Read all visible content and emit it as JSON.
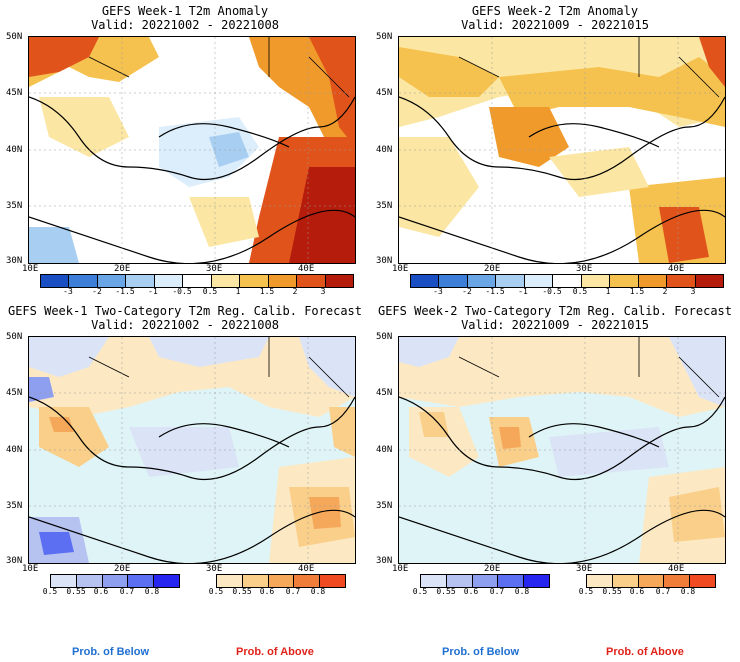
{
  "panels": [
    {
      "title": "GEFS Week-1 T2m Anomaly",
      "valid": "Valid: 20221002 - 20221008"
    },
    {
      "title": "GEFS Week-2 T2m Anomaly",
      "valid": "Valid: 20221009 - 20221015"
    },
    {
      "title": "GEFS Week-1 Two-Category T2m Reg. Calib. Forecast",
      "valid": "Valid: 20221002 - 20221008"
    },
    {
      "title": "GEFS Week-2 Two-Category T2m Reg. Calib. Forecast",
      "valid": "Valid: 20221009 - 20221015"
    }
  ],
  "axes": {
    "lat": [
      "50N",
      "45N",
      "40N",
      "35N",
      "30N"
    ],
    "lon": [
      "10E",
      "20E",
      "30E",
      "40E"
    ]
  },
  "anomaly_scale": {
    "ticks": [
      "-3",
      "-2",
      "-1.5",
      "-1",
      "-0.5",
      "0.5",
      "1",
      "1.5",
      "2",
      "3"
    ],
    "colors": [
      "#1a4fc4",
      "#3d7fd8",
      "#6aa6e6",
      "#a8cff2",
      "#dceefb",
      "#ffffff",
      "#fbe7a3",
      "#f6c24f",
      "#f09a2c",
      "#e0541c",
      "#b51c0c"
    ]
  },
  "prob_scale": {
    "ticks": [
      "0.5",
      "0.55",
      "0.6",
      "0.7",
      "0.8"
    ],
    "below_colors": [
      "#dbe3f7",
      "#b6c3f1",
      "#8f9ff0",
      "#5c6ff2",
      "#2626f0"
    ],
    "above_colors": [
      "#fce9c3",
      "#f9cf8a",
      "#f5a85a",
      "#f07d3a",
      "#ef4a22"
    ],
    "below_label": "Prob. of Below",
    "above_label": "Prob. of Above",
    "below_color": "#1f6fd0",
    "above_color": "#e0231a"
  }
}
